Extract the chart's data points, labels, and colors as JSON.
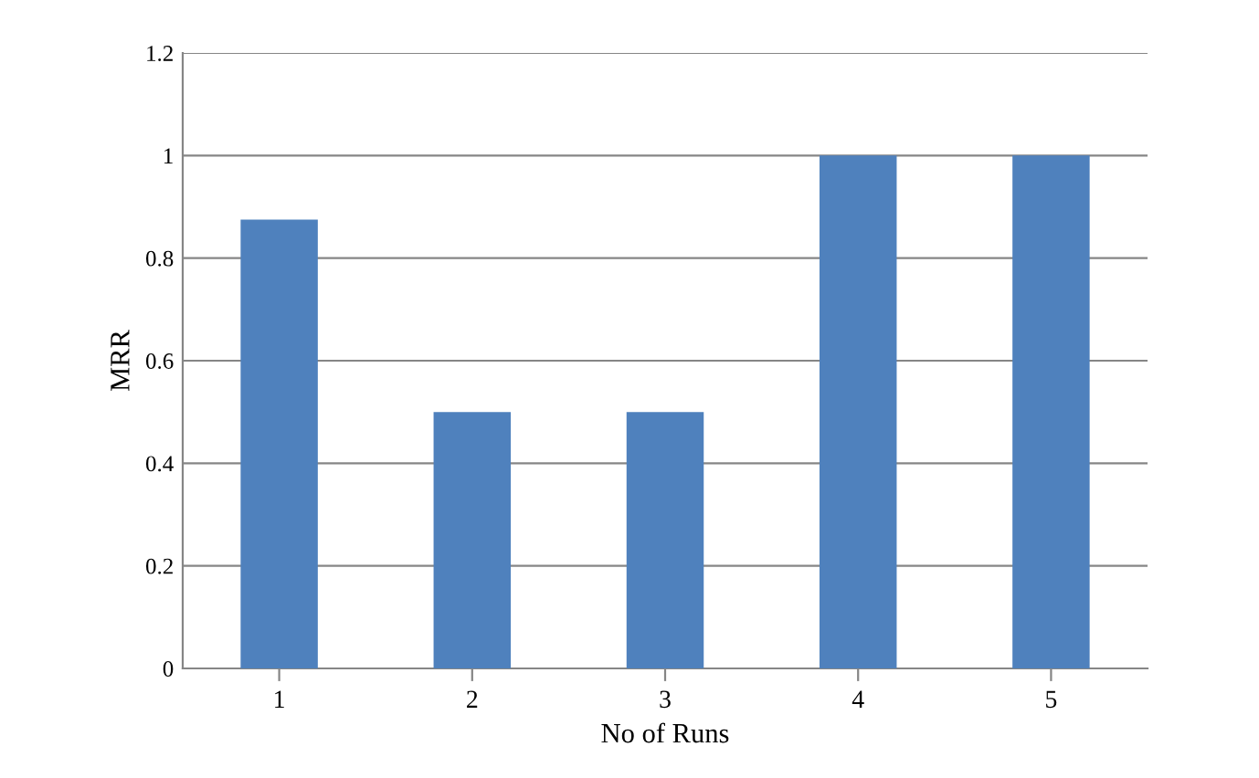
{
  "chart_data": {
    "type": "bar",
    "xlabel": "No of Runs",
    "ylabel": "MRR",
    "categories": [
      "1",
      "2",
      "3",
      "4",
      "5"
    ],
    "values": [
      0.875,
      0.5,
      0.5,
      1,
      1
    ],
    "color": "#4f81bd",
    "ylim": [
      0,
      1.2
    ],
    "yticks": [
      0,
      0.2,
      0.4,
      0.6,
      0.8,
      1,
      1.2
    ],
    "grid": "y",
    "legend": false
  }
}
